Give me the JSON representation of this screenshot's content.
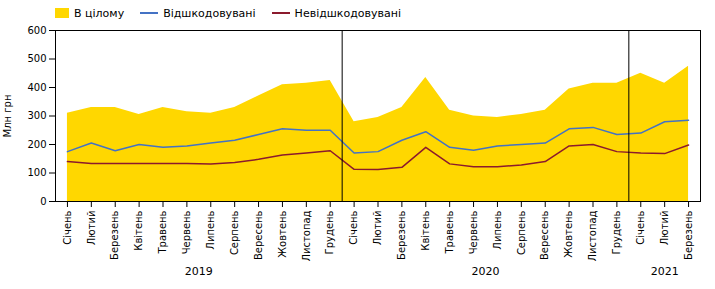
{
  "chart_data": {
    "type": "line",
    "categories": [
      "Січень",
      "Лютий",
      "Березень",
      "Квітень",
      "Травень",
      "Червень",
      "Липень",
      "Серпень",
      "Вересень",
      "Жовтень",
      "Листопад",
      "Грудень",
      "Січень",
      "Лютий",
      "Березень",
      "Квітень",
      "Травень",
      "Червень",
      "Липень",
      "Серпень",
      "Вересень",
      "Жовтень",
      "Листопад",
      "Грудень",
      "Січень",
      "Лютий",
      "Березень"
    ],
    "series": [
      {
        "name": "В цілому",
        "type": "area",
        "color": "#FFD700",
        "values": [
          310,
          330,
          330,
          305,
          330,
          315,
          310,
          330,
          370,
          410,
          415,
          425,
          280,
          295,
          330,
          435,
          320,
          300,
          295,
          305,
          320,
          395,
          415,
          415,
          450,
          415,
          475
        ]
      },
      {
        "name": "Відшкодовувані",
        "type": "line",
        "color": "#4472C4",
        "values": [
          175,
          205,
          178,
          200,
          190,
          195,
          205,
          215,
          235,
          255,
          250,
          250,
          170,
          175,
          215,
          245,
          190,
          180,
          195,
          200,
          205,
          255,
          260,
          235,
          240,
          280,
          285
        ]
      },
      {
        "name": "Невідшкодовувані",
        "type": "line",
        "color": "#8B1A2D",
        "values": [
          140,
          133,
          133,
          133,
          133,
          133,
          132,
          137,
          148,
          163,
          170,
          178,
          113,
          112,
          120,
          190,
          132,
          122,
          122,
          128,
          140,
          195,
          200,
          175,
          170,
          168,
          198
        ]
      }
    ],
    "ylabel": "Млн грн",
    "ylim": [
      0,
      600
    ],
    "yticks": [
      0,
      100,
      200,
      300,
      400,
      500,
      600
    ],
    "legend": "upper left",
    "annotations": [
      {
        "text": "2019",
        "x": 5.5
      },
      {
        "text": "2020",
        "x": 17.5
      },
      {
        "text": "2021",
        "x": 25.0
      }
    ],
    "separators": [
      11.5,
      23.5
    ]
  }
}
